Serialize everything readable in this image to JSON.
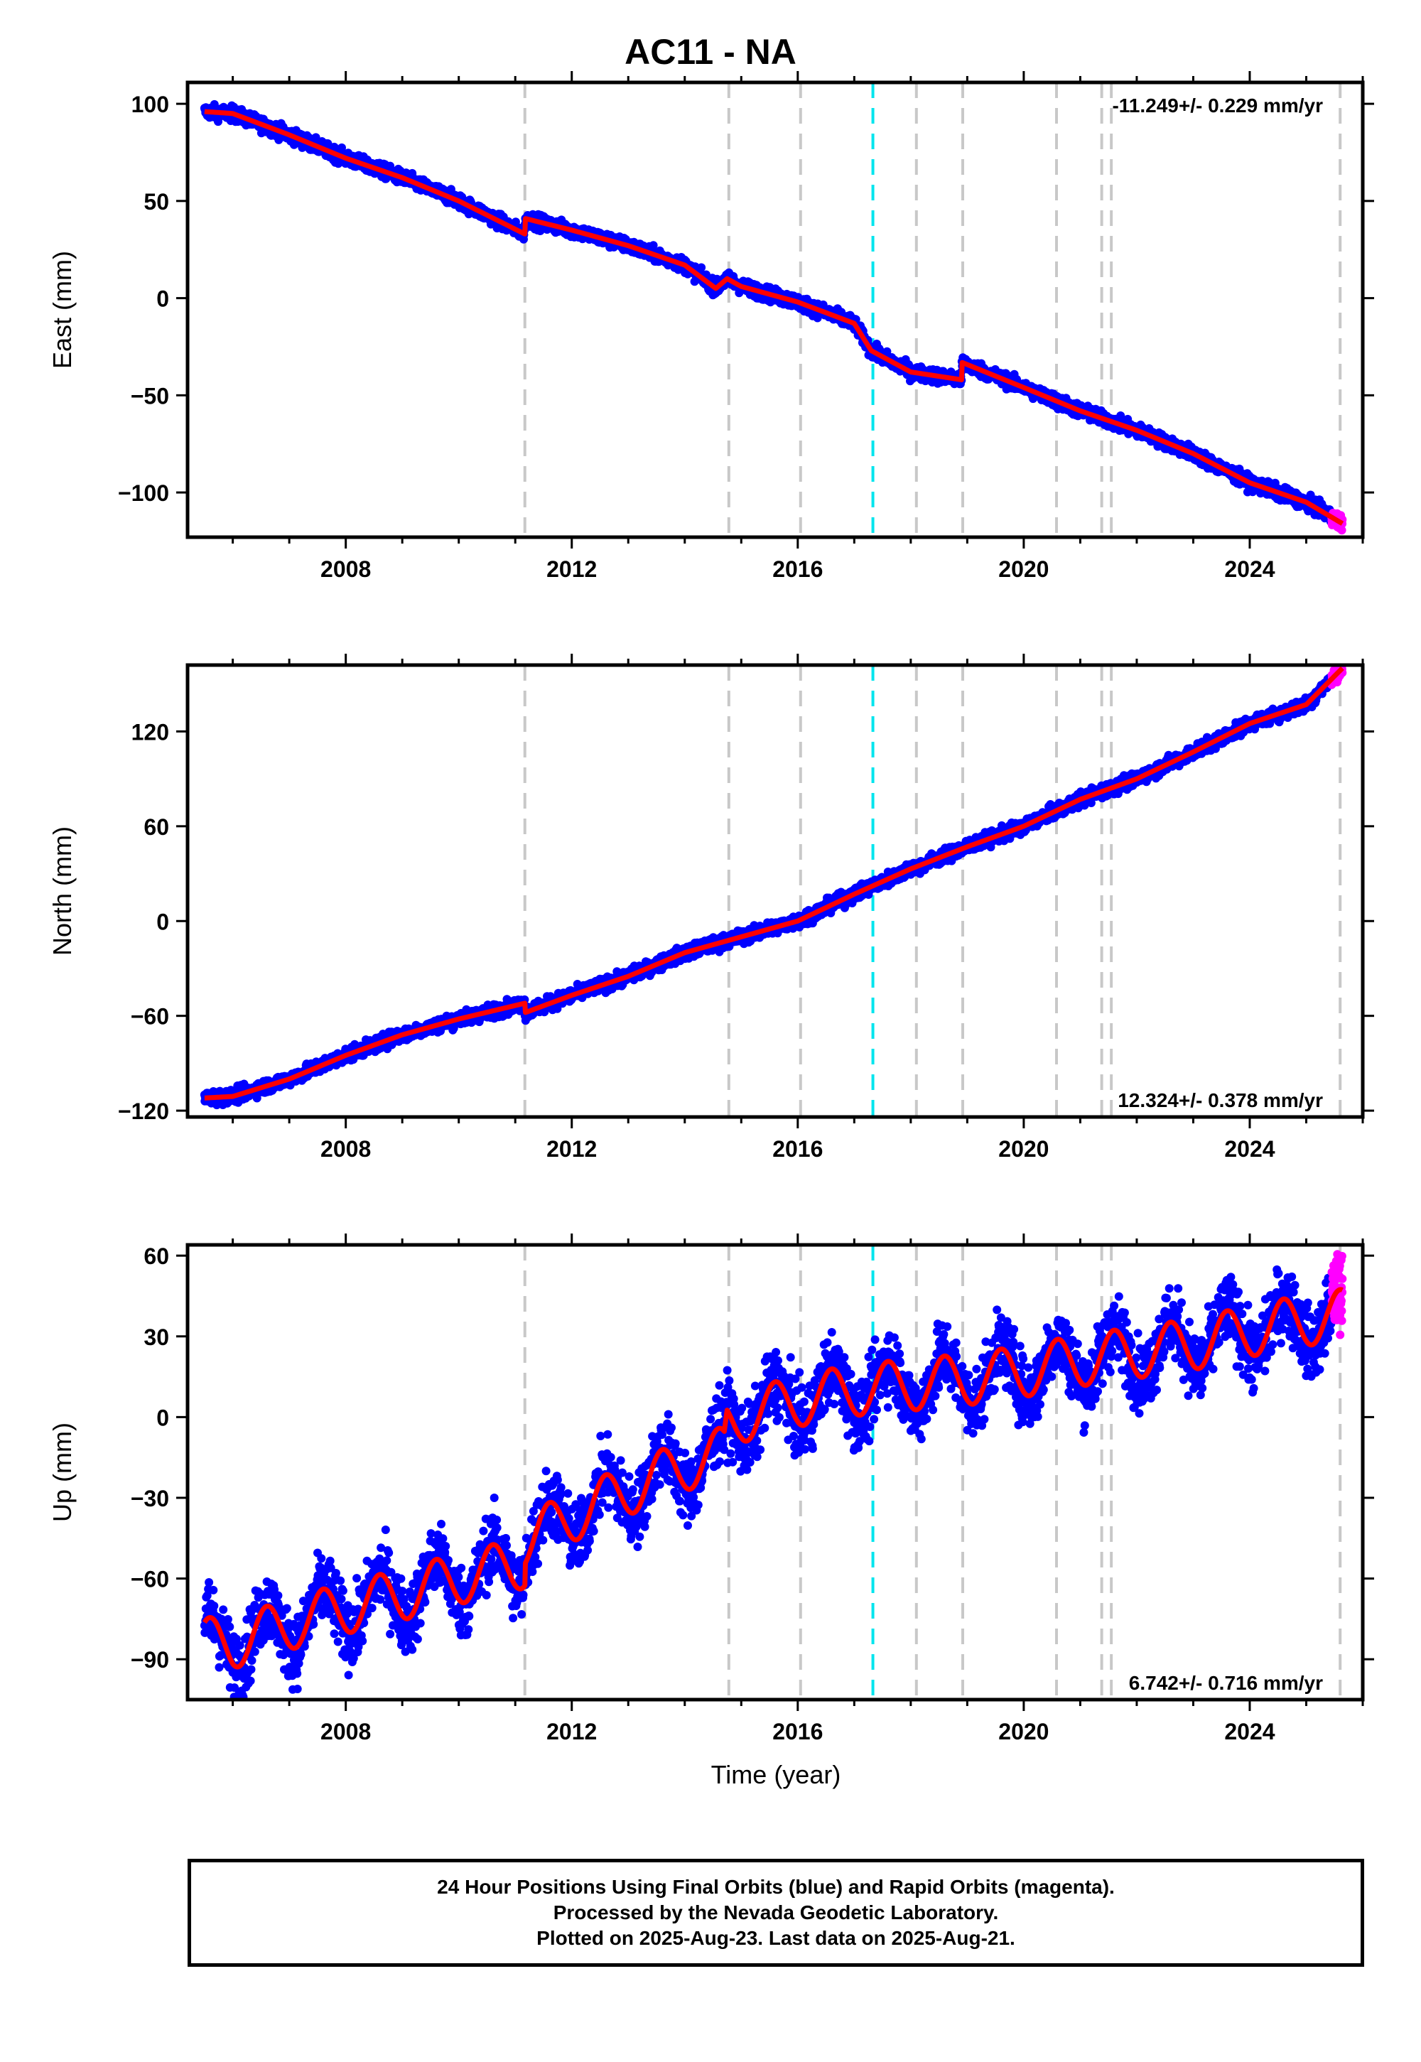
{
  "title": "AC11 - NA",
  "caption": {
    "line1": "24 Hour Positions Using Final Orbits (blue) and Rapid Orbits (magenta).",
    "line2": "Processed by the Nevada Geodetic Laboratory.",
    "line3": "Plotted on 2025-Aug-23. Last data on 2025-Aug-21."
  },
  "colors": {
    "final_orbits": "#0000ff",
    "rapid_orbits": "#ff00ff",
    "model_fit": "#ff0000",
    "event_line": "#c8c8c8",
    "antenna_change_line": "#00e5ee"
  },
  "chart_data": [
    {
      "type": "scatter",
      "panel": "east",
      "ylabel": "East (mm)",
      "xlabel": "",
      "xlim": [
        2005.2,
        2026.0
      ],
      "ylim": [
        -123,
        111
      ],
      "yticks": [
        -100,
        -50,
        0,
        50,
        100
      ],
      "xticks": [
        2008,
        2012,
        2016,
        2020,
        2024
      ],
      "rate_label": "-11.249+/- 0.229 mm/yr",
      "rate_label_position": "top-right",
      "noise_amplitude": 1.8,
      "seasonal_amplitude": 0,
      "series": [
        {
          "name": "Final Orbits (blue)",
          "x_range": [
            2005.5,
            2025.45
          ],
          "color": "#0000ff"
        },
        {
          "name": "Rapid Orbits (magenta)",
          "x_range": [
            2025.45,
            2025.64
          ],
          "color": "#ff00ff"
        }
      ],
      "trend_points": {
        "x": [
          2005.5,
          2006.0,
          2007.0,
          2008.0,
          2009.0,
          2010.0,
          2011.17,
          2011.17,
          2012.0,
          2013.0,
          2014.0,
          2014.55,
          2014.75,
          2015.0,
          2016.0,
          2017.0,
          2017.3,
          2018.0,
          2018.9,
          2018.9,
          2020.0,
          2021.0,
          2022.0,
          2023.0,
          2024.0,
          2025.0,
          2025.64
        ],
        "y": [
          96,
          95,
          84,
          72,
          62,
          50,
          33,
          41,
          35,
          27,
          17,
          5,
          10,
          6,
          -2,
          -13,
          -27,
          -38,
          -42,
          -33,
          -46,
          -58,
          -68,
          -80,
          -95,
          -105,
          -116
        ]
      },
      "event_lines": [
        2011.17,
        2014.78,
        2016.05,
        2018.1,
        2018.92,
        2020.58,
        2021.38,
        2021.55,
        2025.6
      ],
      "antenna_change_lines": [
        2017.33
      ]
    },
    {
      "type": "scatter",
      "panel": "north",
      "ylabel": "North (mm)",
      "xlabel": "",
      "xlim": [
        2005.2,
        2026.0
      ],
      "ylim": [
        -124,
        162
      ],
      "yticks": [
        -120,
        -60,
        0,
        60,
        120
      ],
      "xticks": [
        2008,
        2012,
        2016,
        2020,
        2024
      ],
      "rate_label": "12.324+/- 0.378 mm/yr",
      "rate_label_position": "bottom-right",
      "noise_amplitude": 2.2,
      "seasonal_amplitude": 0,
      "series": [
        {
          "name": "Final Orbits (blue)",
          "x_range": [
            2005.5,
            2025.45
          ],
          "color": "#0000ff"
        },
        {
          "name": "Rapid Orbits (magenta)",
          "x_range": [
            2025.45,
            2025.64
          ],
          "color": "#ff00ff"
        }
      ],
      "trend_points": {
        "x": [
          2005.5,
          2006.0,
          2007.0,
          2008.0,
          2009.0,
          2010.0,
          2011.17,
          2011.17,
          2012.0,
          2013.0,
          2014.0,
          2015.0,
          2016.0,
          2017.0,
          2018.0,
          2019.0,
          2020.0,
          2021.0,
          2022.0,
          2023.0,
          2024.0,
          2025.0,
          2025.64
        ],
        "y": [
          -112,
          -111,
          -100,
          -85,
          -72,
          -62,
          -52,
          -58,
          -47,
          -35,
          -20,
          -10,
          0,
          17,
          33,
          47,
          60,
          77,
          90,
          107,
          125,
          137,
          160
        ]
      },
      "event_lines": [
        2011.17,
        2014.78,
        2016.05,
        2018.1,
        2018.92,
        2020.58,
        2021.38,
        2021.55,
        2025.6
      ],
      "antenna_change_lines": [
        2017.33
      ]
    },
    {
      "type": "scatter",
      "panel": "up",
      "ylabel": "Up (mm)",
      "xlabel": "Time (year)",
      "xlim": [
        2005.2,
        2026.0
      ],
      "ylim": [
        -105,
        64
      ],
      "yticks": [
        -90,
        -60,
        -30,
        0,
        30,
        60
      ],
      "xticks": [
        2008,
        2012,
        2016,
        2020,
        2024
      ],
      "rate_label": "6.742+/- 0.716 mm/yr",
      "rate_label_position": "bottom-right",
      "noise_amplitude": 6.5,
      "seasonal_amplitude": 9.5,
      "series": [
        {
          "name": "Final Orbits (blue)",
          "x_range": [
            2005.5,
            2025.45
          ],
          "color": "#0000ff"
        },
        {
          "name": "Rapid Orbits (magenta)",
          "x_range": [
            2025.45,
            2025.64
          ],
          "color": "#ff00ff"
        }
      ],
      "trend_points": {
        "x": [
          2005.5,
          2006.0,
          2007.0,
          2008.0,
          2009.0,
          2010.0,
          2011.17,
          2011.17,
          2012.0,
          2013.0,
          2014.0,
          2014.7,
          2014.75,
          2015.0,
          2016.0,
          2017.0,
          2018.0,
          2019.0,
          2020.0,
          2021.0,
          2022.0,
          2023.0,
          2024.0,
          2025.0,
          2025.64
        ],
        "y": [
          -84,
          -84,
          -77,
          -71,
          -66,
          -60,
          -54,
          -46,
          -37,
          -27,
          -18,
          -13,
          -3,
          0,
          6,
          10,
          12,
          14,
          17,
          21,
          24,
          27,
          32,
          36,
          38
        ]
      },
      "event_lines": [
        2011.17,
        2014.78,
        2016.05,
        2018.1,
        2018.92,
        2020.58,
        2021.38,
        2021.55,
        2025.6
      ],
      "antenna_change_lines": [
        2017.33
      ]
    }
  ]
}
